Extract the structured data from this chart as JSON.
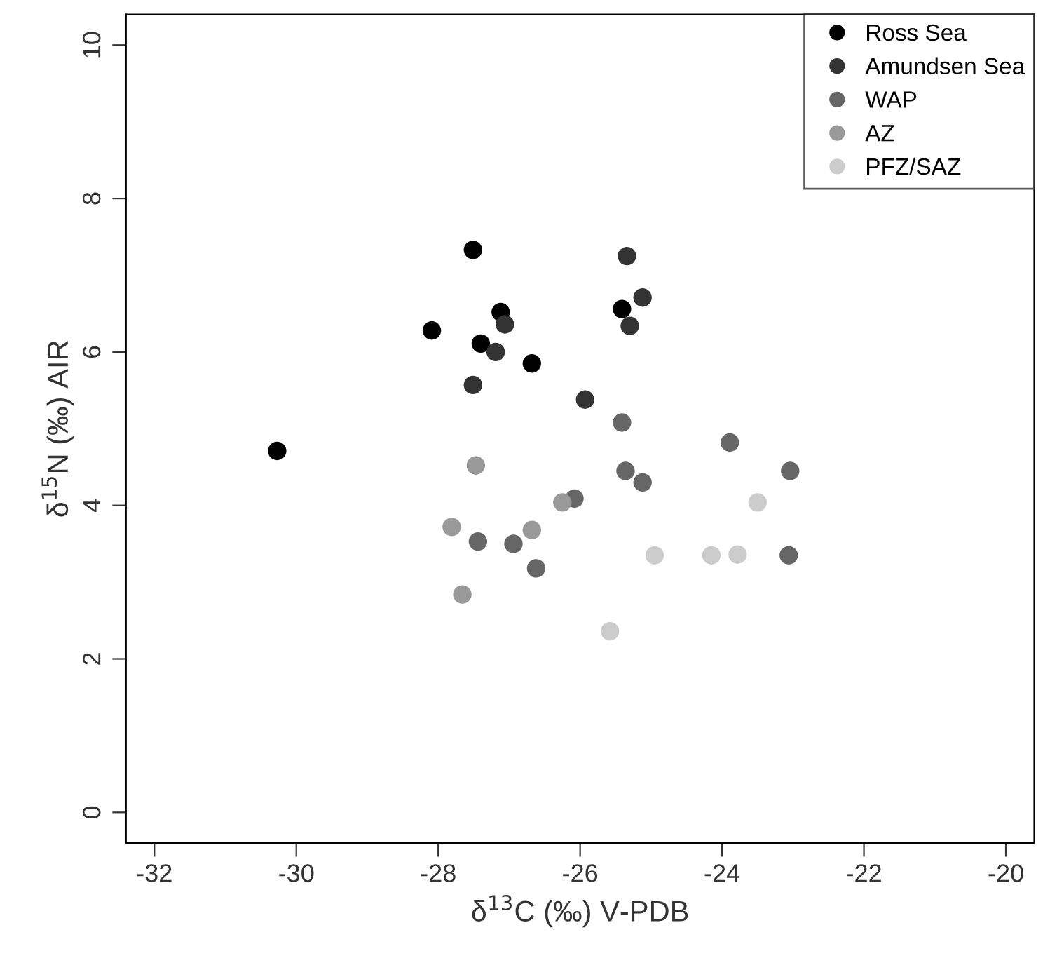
{
  "chart_data": {
    "type": "scatter",
    "xlabel": "δ$^{13}$C (‰) V-PDB",
    "ylabel": "δ$^{15}$N (‰) AIR",
    "xlim": [
      -32.4,
      -19.6
    ],
    "xticks": [
      -32,
      -30,
      -28,
      -26,
      -24,
      -22,
      -20
    ],
    "ylim": [
      -0.4,
      10.4
    ],
    "yticks": [
      0,
      2,
      4,
      6,
      8,
      10
    ],
    "grid": false,
    "legend": "top right",
    "marker": "circle",
    "series": [
      {
        "name": "Ross Sea",
        "color": "#000000",
        "x": [
          -30.27,
          -27.51,
          -27.12,
          -28.09,
          -27.4,
          -26.68,
          -25.41
        ],
        "values": [
          4.71,
          7.33,
          6.52,
          6.28,
          6.11,
          5.85,
          6.56
        ]
      },
      {
        "name": "Amundsen Sea",
        "color": "#333333",
        "x": [
          -25.34,
          -25.12,
          -25.3,
          -27.06,
          -27.19,
          -27.51,
          -25.93
        ],
        "values": [
          7.25,
          6.71,
          6.34,
          6.36,
          6.0,
          5.57,
          5.38
        ]
      },
      {
        "name": "WAP",
        "color": "#666666",
        "x": [
          -25.41,
          -25.36,
          -25.12,
          -26.08,
          -26.94,
          -26.62,
          -23.89,
          -23.04,
          -23.06,
          -27.44
        ],
        "values": [
          5.08,
          4.45,
          4.3,
          4.09,
          3.5,
          3.18,
          4.82,
          4.45,
          3.35,
          3.53
        ]
      },
      {
        "name": "AZ",
        "color": "#999999",
        "x": [
          -26.25,
          -26.68,
          -27.47,
          -27.81,
          -27.66
        ],
        "values": [
          4.04,
          3.68,
          4.52,
          3.72,
          2.84
        ]
      },
      {
        "name": "PFZ/SAZ",
        "color": "#cccccc",
        "x": [
          -23.5,
          -24.95,
          -24.15,
          -23.78,
          -25.58
        ],
        "values": [
          4.04,
          3.35,
          3.35,
          3.36,
          2.36
        ]
      }
    ]
  }
}
